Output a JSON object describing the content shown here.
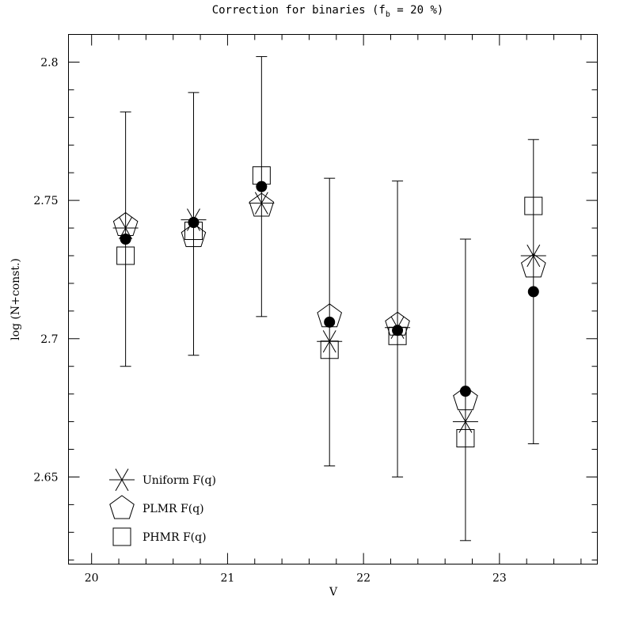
{
  "chart_data": {
    "type": "scatter",
    "title_parts": {
      "before": "Correction for binaries (f",
      "sub": "b",
      "after": " = 20 %)"
    },
    "xlabel": "V",
    "ylabel": "log (N+const.)",
    "xlim": [
      19.83,
      23.72
    ],
    "ylim": [
      2.6185,
      2.81
    ],
    "x_ticks": [
      20,
      21,
      22,
      23
    ],
    "x_tick_labels": [
      "20",
      "21",
      "22",
      "23"
    ],
    "y_ticks": [
      2.65,
      2.7,
      2.75,
      2.8
    ],
    "y_tick_labels": [
      "2.65",
      "2.7",
      "2.75",
      "2.8"
    ],
    "x_minor_step": 0.2,
    "y_minor_step": 0.01,
    "grid": false,
    "legend_position": "bottom-left",
    "x": [
      20.25,
      20.75,
      21.25,
      21.75,
      22.25,
      22.75,
      23.25
    ],
    "error_bars": {
      "low": [
        2.69,
        2.694,
        2.708,
        2.654,
        2.65,
        2.627,
        2.662
      ],
      "high": [
        2.782,
        2.789,
        2.802,
        2.758,
        2.757,
        2.736,
        2.772
      ]
    },
    "series": [
      {
        "name": "Uniform F(q)",
        "marker": "asterisk",
        "values": [
          2.74,
          2.743,
          2.749,
          2.699,
          2.704,
          2.67,
          2.73
        ]
      },
      {
        "name": "PLMR F(q)",
        "marker": "pentagon",
        "values": [
          2.741,
          2.737,
          2.748,
          2.708,
          2.705,
          2.678,
          2.726
        ]
      },
      {
        "name": "PHMR F(q)",
        "marker": "square",
        "values": [
          2.73,
          2.739,
          2.759,
          2.696,
          2.701,
          2.664,
          2.748
        ]
      },
      {
        "marker": "filled-circle",
        "values": [
          2.736,
          2.742,
          2.755,
          2.706,
          2.703,
          2.681,
          2.717
        ]
      }
    ],
    "colors": {
      "axes": "#000000",
      "markers": "#000000",
      "background": "#ffffff"
    }
  }
}
